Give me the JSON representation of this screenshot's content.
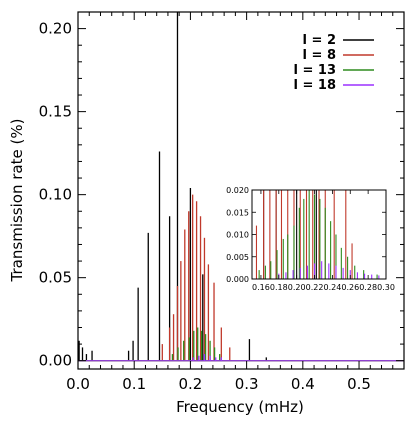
{
  "chart_data": [
    {
      "type": "line",
      "xlabel": "Frequency (mHz)",
      "ylabel": "Transmission rate (%)",
      "xlim": [
        0.0,
        0.58
      ],
      "ylim": [
        -0.005,
        0.21
      ],
      "xticks": [
        0.0,
        0.1,
        0.2,
        0.3,
        0.4,
        0.5
      ],
      "xtick_labels": [
        "0.0",
        "0.1",
        "0.2",
        "0.3",
        "0.4",
        "0.5"
      ],
      "yticks": [
        0.0,
        0.05,
        0.1,
        0.15,
        0.2
      ],
      "ytick_labels": [
        "0.00",
        "0.05",
        "0.10",
        "0.15",
        "0.20"
      ],
      "legend_position": "top-right",
      "series": [
        {
          "name": "l = 2",
          "color": "#000000",
          "peaks": [
            {
              "x": 0.002,
              "y": 0.012
            },
            {
              "x": 0.008,
              "y": 0.008
            },
            {
              "x": 0.015,
              "y": 0.004
            },
            {
              "x": 0.025,
              "y": 0.006
            },
            {
              "x": 0.09,
              "y": 0.006
            },
            {
              "x": 0.098,
              "y": 0.012
            },
            {
              "x": 0.107,
              "y": 0.044
            },
            {
              "x": 0.125,
              "y": 0.077
            },
            {
              "x": 0.145,
              "y": 0.126
            },
            {
              "x": 0.163,
              "y": 0.087
            },
            {
              "x": 0.177,
              "y": 0.21
            },
            {
              "x": 0.2,
              "y": 0.104
            },
            {
              "x": 0.222,
              "y": 0.052
            },
            {
              "x": 0.305,
              "y": 0.013
            },
            {
              "x": 0.335,
              "y": 0.002
            }
          ]
        },
        {
          "name": "l = 8",
          "color": "#c0392b",
          "peaks": [
            {
              "x": 0.15,
              "y": 0.01
            },
            {
              "x": 0.163,
              "y": 0.02
            },
            {
              "x": 0.17,
              "y": 0.028
            },
            {
              "x": 0.177,
              "y": 0.045
            },
            {
              "x": 0.183,
              "y": 0.06
            },
            {
              "x": 0.19,
              "y": 0.079
            },
            {
              "x": 0.197,
              "y": 0.09
            },
            {
              "x": 0.204,
              "y": 0.1
            },
            {
              "x": 0.211,
              "y": 0.096
            },
            {
              "x": 0.218,
              "y": 0.087
            },
            {
              "x": 0.225,
              "y": 0.074
            },
            {
              "x": 0.232,
              "y": 0.058
            },
            {
              "x": 0.242,
              "y": 0.047
            },
            {
              "x": 0.255,
              "y": 0.02
            },
            {
              "x": 0.27,
              "y": 0.008
            }
          ]
        },
        {
          "name": "l = 13",
          "color": "#2e8b1e",
          "peaks": [
            {
              "x": 0.168,
              "y": 0.004
            },
            {
              "x": 0.178,
              "y": 0.008
            },
            {
              "x": 0.188,
              "y": 0.012
            },
            {
              "x": 0.198,
              "y": 0.014
            },
            {
              "x": 0.206,
              "y": 0.018
            },
            {
              "x": 0.213,
              "y": 0.02
            },
            {
              "x": 0.22,
              "y": 0.018
            },
            {
              "x": 0.227,
              "y": 0.016
            },
            {
              "x": 0.235,
              "y": 0.012
            },
            {
              "x": 0.243,
              "y": 0.008
            },
            {
              "x": 0.252,
              "y": 0.004
            }
          ]
        },
        {
          "name": "l = 18",
          "color": "#9b30ff",
          "peaks": [
            {
              "x": 0.205,
              "y": 0.002
            },
            {
              "x": 0.215,
              "y": 0.003
            },
            {
              "x": 0.225,
              "y": 0.004
            },
            {
              "x": 0.235,
              "y": 0.003
            },
            {
              "x": 0.245,
              "y": 0.002
            },
            {
              "x": 0.255,
              "y": 0.002
            }
          ]
        }
      ]
    },
    {
      "type": "line",
      "xlim": [
        0.15,
        0.3
      ],
      "ylim": [
        0.0,
        0.02
      ],
      "xticks": [
        0.16,
        0.18,
        0.2,
        0.22,
        0.24,
        0.26,
        0.28,
        0.3
      ],
      "xtick_labels": [
        "0.16",
        "0.18",
        "0.20",
        "0.22",
        "0.24",
        "0.26",
        "0.28",
        "0.30"
      ],
      "yticks": [
        0.0,
        0.005,
        0.01,
        0.015,
        0.02
      ],
      "ytick_labels": [
        "0.000",
        "0.005",
        "0.010",
        "0.015",
        "0.020"
      ],
      "series": [
        {
          "name": "l = 2",
          "color": "#000000",
          "peaks": [
            {
              "x": 0.163,
              "y": 0.087
            },
            {
              "x": 0.177,
              "y": 0.21
            },
            {
              "x": 0.2,
              "y": 0.104
            },
            {
              "x": 0.222,
              "y": 0.052
            }
          ]
        },
        {
          "name": "l = 8",
          "color": "#c0392b",
          "peaks": [
            {
              "x": 0.155,
              "y": 0.012
            },
            {
              "x": 0.163,
              "y": 0.02
            },
            {
              "x": 0.17,
              "y": 0.028
            },
            {
              "x": 0.177,
              "y": 0.045
            },
            {
              "x": 0.183,
              "y": 0.06
            },
            {
              "x": 0.19,
              "y": 0.079
            },
            {
              "x": 0.197,
              "y": 0.09
            },
            {
              "x": 0.204,
              "y": 0.1
            },
            {
              "x": 0.211,
              "y": 0.096
            },
            {
              "x": 0.218,
              "y": 0.087
            },
            {
              "x": 0.225,
              "y": 0.074
            },
            {
              "x": 0.232,
              "y": 0.058
            },
            {
              "x": 0.242,
              "y": 0.047
            },
            {
              "x": 0.255,
              "y": 0.02
            },
            {
              "x": 0.262,
              "y": 0.008
            }
          ]
        },
        {
          "name": "l = 13",
          "color": "#2e8b1e",
          "peaks": [
            {
              "x": 0.158,
              "y": 0.002
            },
            {
              "x": 0.165,
              "y": 0.003
            },
            {
              "x": 0.171,
              "y": 0.004
            },
            {
              "x": 0.178,
              "y": 0.0065
            },
            {
              "x": 0.185,
              "y": 0.009
            },
            {
              "x": 0.19,
              "y": 0.01
            },
            {
              "x": 0.197,
              "y": 0.012
            },
            {
              "x": 0.203,
              "y": 0.016
            },
            {
              "x": 0.208,
              "y": 0.018
            },
            {
              "x": 0.214,
              "y": 0.02
            },
            {
              "x": 0.22,
              "y": 0.019
            },
            {
              "x": 0.226,
              "y": 0.018
            },
            {
              "x": 0.232,
              "y": 0.016
            },
            {
              "x": 0.238,
              "y": 0.013
            },
            {
              "x": 0.244,
              "y": 0.01
            },
            {
              "x": 0.25,
              "y": 0.007
            },
            {
              "x": 0.257,
              "y": 0.005
            },
            {
              "x": 0.265,
              "y": 0.003
            },
            {
              "x": 0.275,
              "y": 0.002
            },
            {
              "x": 0.29,
              "y": 0.001
            }
          ]
        },
        {
          "name": "l = 18",
          "color": "#9b30ff",
          "peaks": [
            {
              "x": 0.18,
              "y": 0.0012
            },
            {
              "x": 0.188,
              "y": 0.0015
            },
            {
              "x": 0.196,
              "y": 0.002
            },
            {
              "x": 0.204,
              "y": 0.0025
            },
            {
              "x": 0.212,
              "y": 0.003
            },
            {
              "x": 0.22,
              "y": 0.0035
            },
            {
              "x": 0.228,
              "y": 0.004
            },
            {
              "x": 0.236,
              "y": 0.0035
            },
            {
              "x": 0.244,
              "y": 0.003
            },
            {
              "x": 0.252,
              "y": 0.0025
            },
            {
              "x": 0.26,
              "y": 0.002
            },
            {
              "x": 0.268,
              "y": 0.0015
            },
            {
              "x": 0.276,
              "y": 0.0012
            },
            {
              "x": 0.284,
              "y": 0.001
            },
            {
              "x": 0.292,
              "y": 0.0008
            }
          ]
        }
      ]
    }
  ]
}
